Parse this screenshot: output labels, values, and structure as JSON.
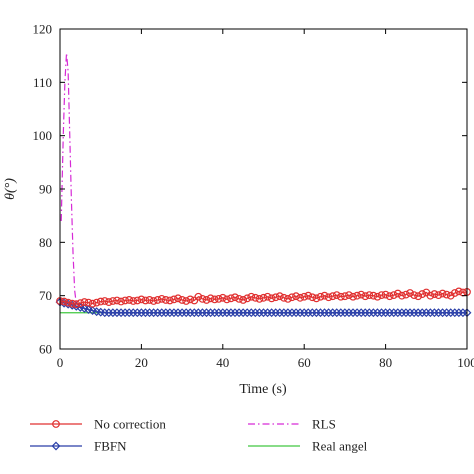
{
  "chart_data": {
    "type": "line",
    "xlabel": "Time (s)",
    "ylabel": "θ(°)",
    "xlim": [
      0,
      100
    ],
    "ylim": [
      60,
      120
    ],
    "xticks": [
      0,
      20,
      40,
      60,
      80,
      100
    ],
    "yticks": [
      60,
      70,
      80,
      90,
      100,
      110,
      120
    ],
    "grid": false,
    "legend_placement": "bottom",
    "series": [
      {
        "name": "No correction",
        "color": "#e03030",
        "marker": "circle",
        "line_style": "solid",
        "x": [
          0,
          1,
          2,
          3,
          4,
          5,
          6,
          7,
          8,
          9,
          10,
          11,
          12,
          13,
          14,
          15,
          16,
          17,
          18,
          19,
          20,
          21,
          22,
          23,
          24,
          25,
          26,
          27,
          28,
          29,
          30,
          31,
          32,
          33,
          34,
          35,
          36,
          37,
          38,
          39,
          40,
          41,
          42,
          43,
          44,
          45,
          46,
          47,
          48,
          49,
          50,
          51,
          52,
          53,
          54,
          55,
          56,
          57,
          58,
          59,
          60,
          61,
          62,
          63,
          64,
          65,
          66,
          67,
          68,
          69,
          70,
          71,
          72,
          73,
          74,
          75,
          76,
          77,
          78,
          79,
          80,
          81,
          82,
          83,
          84,
          85,
          86,
          87,
          88,
          89,
          90,
          91,
          92,
          93,
          94,
          95,
          96,
          97,
          98,
          99,
          100
        ],
        "y": [
          69.0,
          68.9,
          68.7,
          68.5,
          68.4,
          68.6,
          68.8,
          68.7,
          68.5,
          68.7,
          68.9,
          69.0,
          68.8,
          69.0,
          69.1,
          68.9,
          69.1,
          69.2,
          69.0,
          69.1,
          69.3,
          69.1,
          69.2,
          69.0,
          69.2,
          69.4,
          69.2,
          69.1,
          69.3,
          69.5,
          69.2,
          69.0,
          69.3,
          69.1,
          69.8,
          69.4,
          69.2,
          69.5,
          69.3,
          69.4,
          69.6,
          69.3,
          69.5,
          69.7,
          69.4,
          69.2,
          69.5,
          69.8,
          69.6,
          69.4,
          69.6,
          69.8,
          69.5,
          69.7,
          69.9,
          69.6,
          69.4,
          69.7,
          69.9,
          69.6,
          69.8,
          70.0,
          69.7,
          69.5,
          69.8,
          70.0,
          69.7,
          69.9,
          70.1,
          69.8,
          69.9,
          70.1,
          69.8,
          70.0,
          70.2,
          69.9,
          70.1,
          70.0,
          69.8,
          70.1,
          70.2,
          69.9,
          70.1,
          70.4,
          70.0,
          70.2,
          70.5,
          70.1,
          69.9,
          70.3,
          70.6,
          70.0,
          70.3,
          70.1,
          70.4,
          70.2,
          70.0,
          70.5,
          70.8,
          70.6,
          70.7
        ]
      },
      {
        "name": "FBFN",
        "color": "#2a3fa8",
        "marker": "diamond",
        "line_style": "solid",
        "x": [
          0,
          1,
          2,
          3,
          4,
          5,
          6,
          7,
          8,
          9,
          10,
          11,
          12,
          13,
          14,
          15,
          16,
          17,
          18,
          19,
          20,
          21,
          22,
          23,
          24,
          25,
          26,
          27,
          28,
          29,
          30,
          31,
          32,
          33,
          34,
          35,
          36,
          37,
          38,
          39,
          40,
          41,
          42,
          43,
          44,
          45,
          46,
          47,
          48,
          49,
          50,
          51,
          52,
          53,
          54,
          55,
          56,
          57,
          58,
          59,
          60,
          61,
          62,
          63,
          64,
          65,
          66,
          67,
          68,
          69,
          70,
          71,
          72,
          73,
          74,
          75,
          76,
          77,
          78,
          79,
          80,
          81,
          82,
          83,
          84,
          85,
          86,
          87,
          88,
          89,
          90,
          91,
          92,
          93,
          94,
          95,
          96,
          97,
          98,
          99,
          100
        ],
        "y": [
          68.8,
          68.6,
          68.4,
          68.2,
          68.0,
          67.8,
          67.6,
          67.4,
          67.2,
          67.0,
          66.9,
          66.8,
          66.8,
          66.8,
          66.8,
          66.8,
          66.8,
          66.8,
          66.8,
          66.8,
          66.8,
          66.8,
          66.8,
          66.8,
          66.8,
          66.8,
          66.8,
          66.8,
          66.8,
          66.8,
          66.8,
          66.8,
          66.8,
          66.8,
          66.8,
          66.8,
          66.8,
          66.8,
          66.8,
          66.8,
          66.8,
          66.8,
          66.8,
          66.8,
          66.8,
          66.8,
          66.8,
          66.8,
          66.8,
          66.8,
          66.8,
          66.8,
          66.8,
          66.8,
          66.8,
          66.8,
          66.8,
          66.8,
          66.8,
          66.8,
          66.8,
          66.8,
          66.8,
          66.8,
          66.8,
          66.8,
          66.8,
          66.8,
          66.8,
          66.8,
          66.8,
          66.8,
          66.8,
          66.8,
          66.8,
          66.8,
          66.8,
          66.8,
          66.8,
          66.8,
          66.8,
          66.8,
          66.8,
          66.8,
          66.8,
          66.8,
          66.8,
          66.8,
          66.8,
          66.8,
          66.8,
          66.8,
          66.8,
          66.8,
          66.8,
          66.8,
          66.8,
          66.8,
          66.8,
          66.8,
          66.8
        ]
      },
      {
        "name": "RLS",
        "color": "#d62ad6",
        "marker": "none",
        "line_style": "dashdot",
        "x": [
          0.3,
          0.8,
          1.2,
          1.6,
          2.0,
          2.4,
          2.8,
          3.2,
          3.6,
          4.0,
          5.0
        ],
        "y": [
          84.0,
          100.0,
          110.0,
          115.5,
          112.0,
          100.0,
          88.0,
          78.0,
          71.0,
          68.5,
          68.2
        ]
      },
      {
        "name": "Real angel",
        "color": "#40c840",
        "marker": "none",
        "line_style": "solid",
        "x": [
          0,
          10
        ],
        "y": [
          66.8,
          66.8
        ]
      }
    ]
  }
}
